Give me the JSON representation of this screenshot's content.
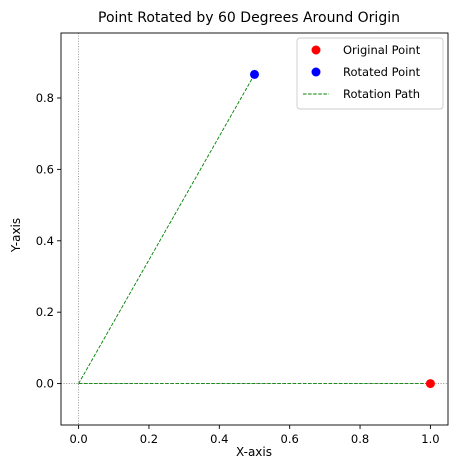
{
  "chart_data": {
    "type": "scatter",
    "title": "Point Rotated by 60 Degrees Around Origin",
    "xlabel": "X-axis",
    "ylabel": "Y-axis",
    "xlim": [
      -0.05,
      1.05
    ],
    "ylim": [
      -0.116,
      0.982
    ],
    "xticks": [
      0.0,
      0.2,
      0.4,
      0.6,
      0.8,
      1.0
    ],
    "xtick_labels": [
      "0.0",
      "0.2",
      "0.4",
      "0.6",
      "0.8",
      "1.0"
    ],
    "yticks": [
      0.0,
      0.2,
      0.4,
      0.6,
      0.8
    ],
    "ytick_labels": [
      "0.0",
      "0.2",
      "0.4",
      "0.6",
      "0.8"
    ],
    "grid": false,
    "reference_lines": {
      "x": 0,
      "y": 0,
      "color": "#808080",
      "style": "dotted"
    },
    "legend_position": "top-right",
    "series": [
      {
        "name": "Original Point",
        "kind": "scatter",
        "color": "#ff0000",
        "x": [
          1.0
        ],
        "y": [
          0.0
        ]
      },
      {
        "name": "Rotated Point",
        "kind": "scatter",
        "color": "#0000ff",
        "x": [
          0.5
        ],
        "y": [
          0.866
        ]
      },
      {
        "name": "Rotation Path",
        "kind": "line",
        "color": "#008000",
        "style": "dashed",
        "paths": [
          {
            "x": [
              0,
              1.0
            ],
            "y": [
              0,
              0.0
            ]
          },
          {
            "x": [
              0,
              0.5
            ],
            "y": [
              0,
              0.866
            ]
          }
        ]
      }
    ]
  }
}
